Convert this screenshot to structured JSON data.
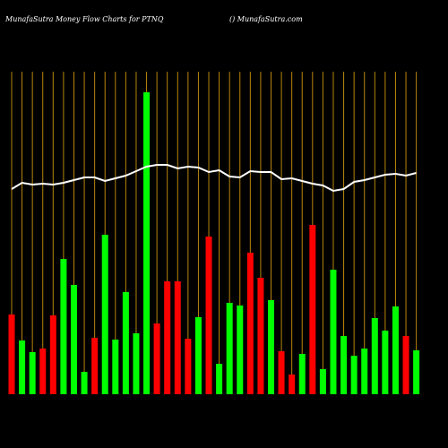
{
  "chart_data": {
    "type": "bar",
    "title": "MunafaSutra  Money Flow  Charts for PTNQ",
    "subtitle": "() MunafaSutra.com",
    "categories": [
      null,
      null,
      null,
      null,
      null,
      null,
      null,
      null,
      null,
      null,
      null,
      null,
      null,
      null,
      null,
      null,
      null,
      null,
      null,
      null,
      null,
      null,
      null,
      null,
      null,
      null,
      null,
      null,
      null,
      null,
      null,
      null,
      null,
      null,
      null,
      null,
      null,
      null,
      null,
      null
    ],
    "values": [
      89,
      60,
      47,
      51,
      88,
      151,
      122,
      25,
      63,
      178,
      61,
      114,
      68,
      337,
      79,
      126,
      126,
      62,
      86,
      176,
      34,
      102,
      99,
      158,
      130,
      105,
      48,
      22,
      45,
      189,
      28,
      139,
      65,
      43,
      51,
      85,
      71,
      98,
      65,
      49
    ],
    "colors": [
      "#ff0000",
      "#00ff00",
      "#00ff00",
      "#ff0000",
      "#ff0000",
      "#00ff00",
      "#00ff00",
      "#00ff00",
      "#ff0000",
      "#00ff00",
      "#00ff00",
      "#00ff00",
      "#00ff00",
      "#00ff00",
      "#ff0000",
      "#ff0000",
      "#ff0000",
      "#ff0000",
      "#00ff00",
      "#ff0000",
      "#00ff00",
      "#00ff00",
      "#00ff00",
      "#ff0000",
      "#ff0000",
      "#00ff00",
      "#ff0000",
      "#ff0000",
      "#00ff00",
      "#ff0000",
      "#00ff00",
      "#00ff00",
      "#00ff00",
      "#00ff00",
      "#00ff00",
      "#00ff00",
      "#00ff00",
      "#00ff00",
      "#ff0000",
      "#00ff00"
    ],
    "line": {
      "color": "#ffffff",
      "values": [
        229,
        236,
        234,
        235,
        234,
        236,
        239,
        242,
        242,
        238,
        241,
        244,
        249,
        254,
        256,
        256,
        252,
        254,
        253,
        248,
        250,
        243,
        242,
        249,
        248,
        248,
        240,
        241,
        238,
        235,
        233,
        227,
        229,
        237,
        239,
        242,
        245,
        246,
        244,
        247
      ]
    },
    "grid_color": "#b8860b",
    "ylim": [
      0,
      360
    ]
  }
}
